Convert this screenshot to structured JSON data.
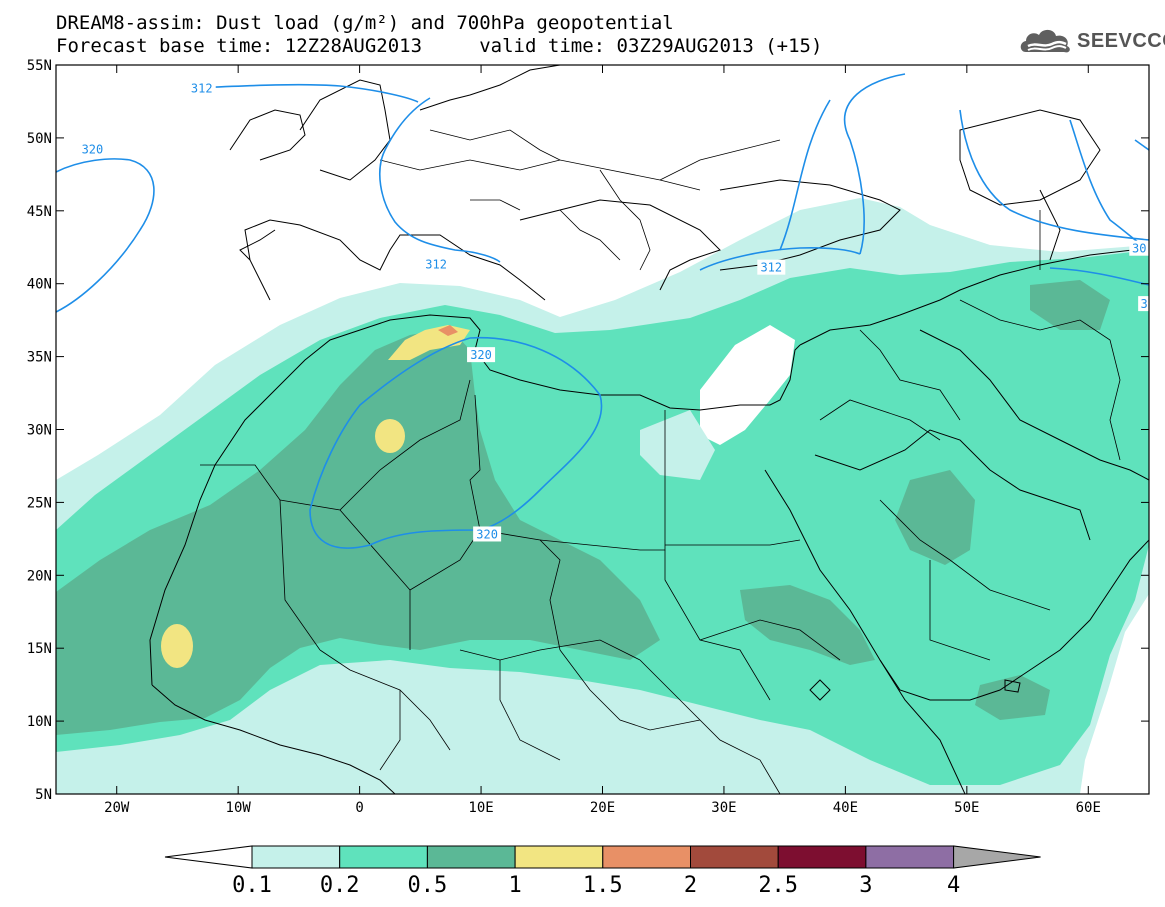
{
  "title": {
    "line1": "DREAM8-assim: Dust load (g/m²) and 700hPa geopotential",
    "line2": "Forecast base time: 12Z28AUG2013     valid time: 03Z29AUG2013 (+15)"
  },
  "brand": {
    "text": "SEEVCCC",
    "icon": "cloud-logo-icon"
  },
  "map": {
    "lon_range": [
      -25,
      65
    ],
    "lat_range": [
      5,
      55
    ],
    "lat_ticks": [
      {
        "value": 55,
        "label": "55N"
      },
      {
        "value": 50,
        "label": "50N"
      },
      {
        "value": 45,
        "label": "45N"
      },
      {
        "value": 40,
        "label": "40N"
      },
      {
        "value": 35,
        "label": "35N"
      },
      {
        "value": 30,
        "label": "30N"
      },
      {
        "value": 25,
        "label": "25N"
      },
      {
        "value": 20,
        "label": "20N"
      },
      {
        "value": 15,
        "label": "15N"
      },
      {
        "value": 10,
        "label": "10N"
      },
      {
        "value": 5,
        "label": "5N"
      }
    ],
    "lon_ticks": [
      {
        "value": -20,
        "label": "20W"
      },
      {
        "value": -10,
        "label": "10W"
      },
      {
        "value": 0,
        "label": "0"
      },
      {
        "value": 10,
        "label": "10E"
      },
      {
        "value": 20,
        "label": "20E"
      },
      {
        "value": 30,
        "label": "30E"
      },
      {
        "value": 40,
        "label": "40E"
      },
      {
        "value": 50,
        "label": "50E"
      },
      {
        "value": 60,
        "label": "60E"
      }
    ],
    "contour_labels": [
      {
        "text": "312",
        "lon": -13.0,
        "lat": 53.4
      },
      {
        "text": "320",
        "lon": -22.0,
        "lat": 49.2
      },
      {
        "text": "312",
        "lon": 6.3,
        "lat": 41.3
      },
      {
        "text": "320",
        "lon": 10.0,
        "lat": 35.1
      },
      {
        "text": "320",
        "lon": 10.5,
        "lat": 22.8
      },
      {
        "text": "312",
        "lon": 33.9,
        "lat": 41.1
      },
      {
        "text": "30",
        "lon": 64.2,
        "lat": 42.4
      },
      {
        "text": "3",
        "lon": 64.6,
        "lat": 38.6
      }
    ]
  },
  "legend": {
    "colors": [
      "#c5f1ea",
      "#5fe2bc",
      "#5bb896",
      "#f2e582",
      "#e89066",
      "#a24a3c",
      "#7d0e30",
      "#8e6ea4"
    ],
    "left_arrow_color": "#ffffff",
    "right_arrow_color": "#a7a7a7",
    "labels": [
      "0.1",
      "0.2",
      "0.5",
      "1",
      "1.5",
      "2",
      "2.5",
      "3",
      "4"
    ]
  }
}
